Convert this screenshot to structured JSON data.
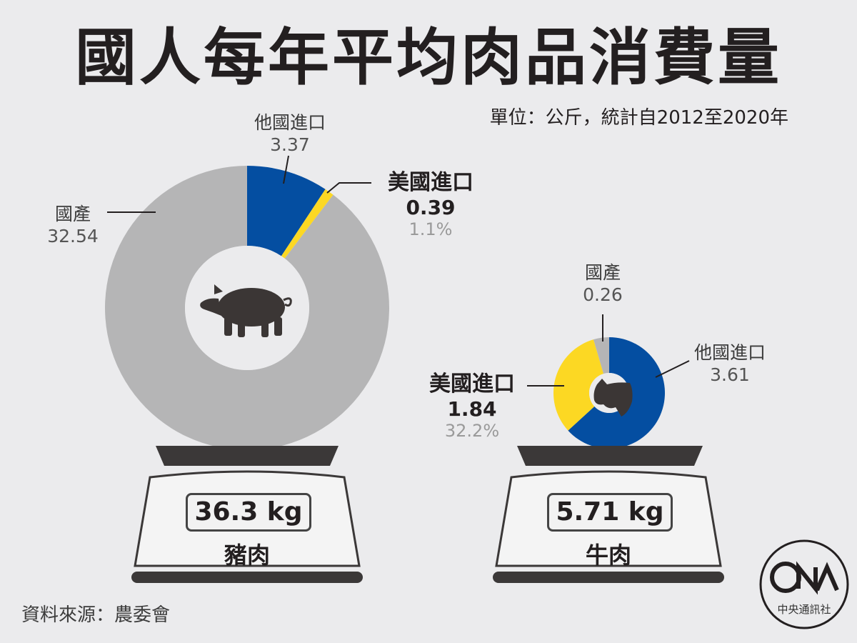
{
  "title": "國人每年平均肉品消費量",
  "unit_note": "單位：公斤，統計自2012至2020年",
  "source": "資料來源：農委會",
  "logo": {
    "brand": "CNA",
    "sub": "中央通訊社"
  },
  "colors": {
    "domestic": "#b5b5b6",
    "other_import": "#044ea1",
    "us_import": "#fcd823",
    "icon": "#3b3635",
    "scale": "#3b3838"
  },
  "chart_data": [
    {
      "type": "pie",
      "name": "豬肉",
      "total_label": "36.3 kg",
      "slices": [
        {
          "label": "他國進口",
          "value": 3.37,
          "value_text": "3.37",
          "color": "#044ea1"
        },
        {
          "label": "美國進口",
          "value": 0.39,
          "value_text": "0.39",
          "pct_text": "1.1%",
          "color": "#fcd823"
        },
        {
          "label": "國產",
          "value": 32.54,
          "value_text": "32.54",
          "color": "#b5b5b6"
        }
      ]
    },
    {
      "type": "pie",
      "name": "牛肉",
      "total_label": "5.71 kg",
      "slices": [
        {
          "label": "他國進口",
          "value": 3.61,
          "value_text": "3.61",
          "color": "#044ea1"
        },
        {
          "label": "美國進口",
          "value": 1.84,
          "value_text": "1.84",
          "pct_text": "32.2%",
          "color": "#fcd823"
        },
        {
          "label": "國產",
          "value": 0.26,
          "value_text": "0.26",
          "color": "#b5b5b6"
        }
      ]
    }
  ]
}
